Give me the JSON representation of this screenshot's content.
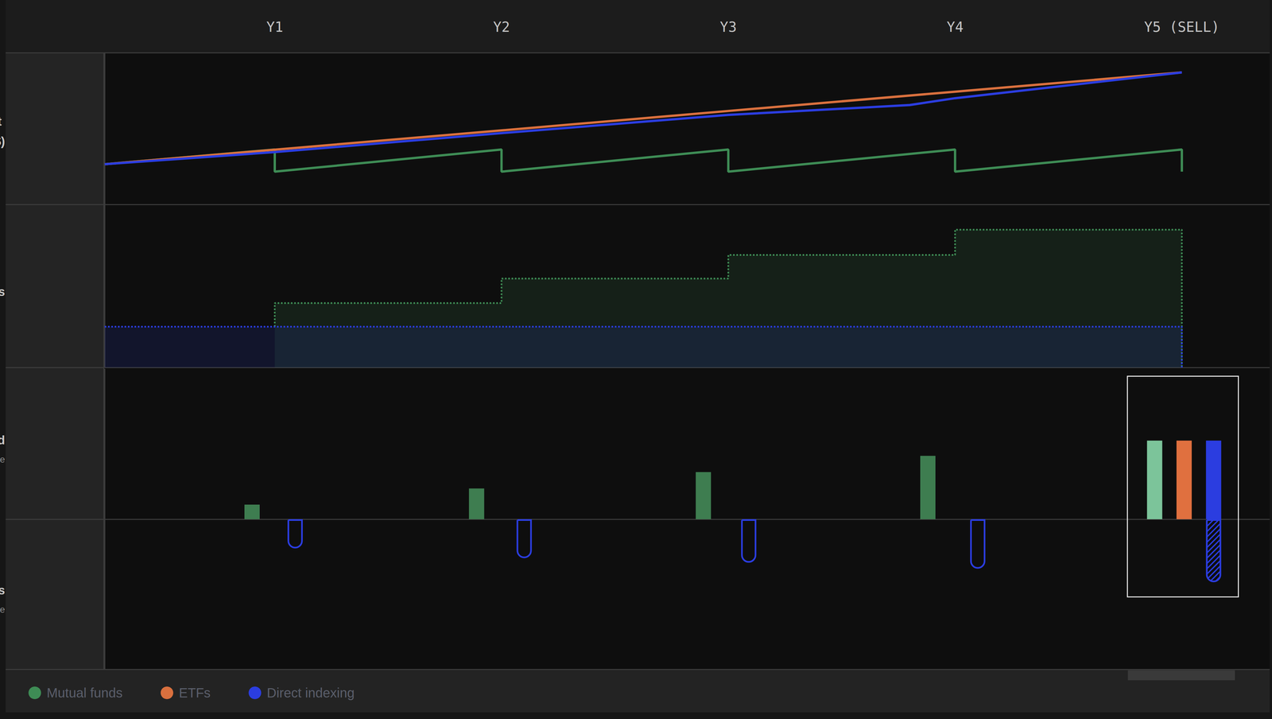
{
  "chart_data": [
    {
      "type": "line",
      "title": "Net asset value ($)",
      "xlim": [
        0.25,
        5.25
      ],
      "xticks": [
        {
          "value": 1,
          "label": "Y1"
        },
        {
          "value": 2,
          "label": "Y2"
        },
        {
          "value": 3,
          "label": "Y3"
        },
        {
          "value": 4,
          "label": "Y4"
        },
        {
          "value": 5,
          "label": "Y5 (SELL)"
        }
      ],
      "ylim": [
        0,
        100
      ],
      "tick_labels": "x",
      "grid": false,
      "legend": "bottom left",
      "series": [
        {
          "name": "Mutual funds",
          "color": "#3e8c55",
          "x": [
            0.25,
            1,
            1,
            2,
            2,
            3,
            3,
            4,
            4,
            5,
            5
          ],
          "values": [
            26.5,
            36.2,
            21.6,
            36.2,
            21.6,
            36.2,
            21.6,
            36.2,
            21.6,
            36.2,
            21.6
          ]
        },
        {
          "name": "ETFs",
          "color": "#d9703e",
          "x": [
            0.25,
            1,
            2,
            3,
            4,
            5
          ],
          "values": [
            26.5,
            36.1,
            48.8,
            61.6,
            74.3,
            87
          ]
        },
        {
          "name": "Direct indexing",
          "color": "#2b3de0",
          "x": [
            0.25,
            1,
            2,
            3,
            3.8,
            4,
            5
          ],
          "values": [
            26.5,
            34.5,
            47,
            59,
            65.5,
            70,
            87
          ]
        }
      ]
    },
    {
      "type": "area",
      "title": "Shares",
      "xlim": [
        0.25,
        5.25
      ],
      "ylim": [
        0,
        100
      ],
      "tick_labels": false,
      "grid": false,
      "line_style": "dotted",
      "series": [
        {
          "name": "Mutual funds",
          "color": "#3e8c55",
          "x": [
            1,
            1,
            2,
            2,
            3,
            3,
            4,
            4,
            5,
            5
          ],
          "values": [
            25,
            39.5,
            39.5,
            54.5,
            54.5,
            69,
            69,
            84.5,
            84.5,
            0
          ]
        },
        {
          "name": "Direct indexing",
          "color": "#2b3de0",
          "x": [
            0.25,
            5,
            5
          ],
          "values": [
            25,
            25,
            0
          ]
        }
      ]
    },
    {
      "type": "bar",
      "title": "Taxes paid",
      "subtitle": "Cumulative",
      "xlim": [
        0.25,
        5.25
      ],
      "ylim": [
        0,
        100
      ],
      "tick_labels": false,
      "grid": false,
      "series": [
        {
          "name": "Mutual funds",
          "colors": [
            "#3e7d50",
            "#3e7d50",
            "#3e7d50",
            "#3e7d50",
            "#7cc49a"
          ],
          "x": [
            0.9,
            1.89,
            2.89,
            3.88,
            4.88
          ],
          "values": [
            9.7,
            20.5,
            31.4,
            42.2,
            52.4
          ]
        },
        {
          "name": "ETFs",
          "color": "#e0703f",
          "x": [
            5.01
          ],
          "values": [
            52.4
          ]
        },
        {
          "name": "Direct indexing",
          "color": "#2b3de0",
          "x": [
            5.14
          ],
          "values": [
            52.4
          ]
        }
      ]
    },
    {
      "type": "bar",
      "title": "Tax losses",
      "subtitle": "Cumulative",
      "xlim": [
        0.25,
        5.25
      ],
      "ylim": [
        -100,
        0
      ],
      "tick_labels": false,
      "grid": false,
      "series": [
        {
          "name": "Direct indexing",
          "color": "#2b3de0",
          "x": [
            1.09,
            2.1,
            3.09,
            4.1,
            5.14
          ],
          "values": [
            -19.5,
            -26,
            -29,
            -33,
            -42
          ]
        }
      ]
    }
  ]
}
